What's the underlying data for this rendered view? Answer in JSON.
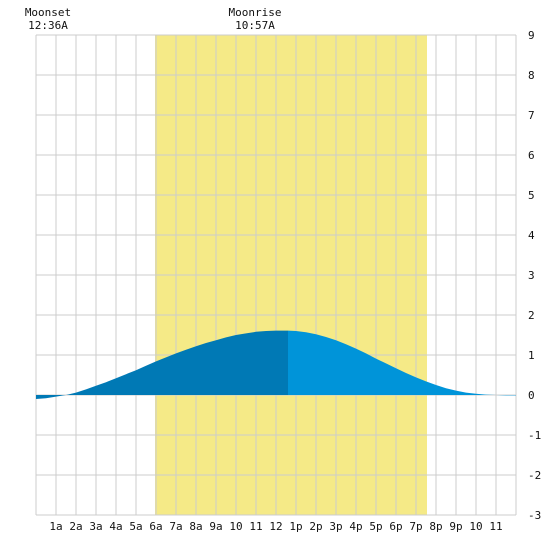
{
  "moon": {
    "moonset_label": "Moonset",
    "moonset_time": "12:36A",
    "moonset_hour": 0.6,
    "moonrise_label": "Moonrise",
    "moonrise_time": "10:57A",
    "moonrise_hour": 10.95
  },
  "chart_data": {
    "type": "area",
    "x_tick_labels": [
      "1a",
      "2a",
      "3a",
      "4a",
      "5a",
      "6a",
      "7a",
      "8a",
      "9a",
      "10",
      "11",
      "12",
      "1p",
      "2p",
      "3p",
      "4p",
      "5p",
      "6p",
      "7p",
      "8p",
      "9p",
      "10",
      "11"
    ],
    "y_tick_labels": [
      "-3",
      "-2",
      "-1",
      "0",
      "1",
      "2",
      "3",
      "4",
      "5",
      "6",
      "7",
      "8",
      "9"
    ],
    "xlim": [
      0,
      24
    ],
    "ylim": [
      -3,
      9
    ],
    "daylight": {
      "start_hour": 5.95,
      "end_hour": 19.55
    },
    "peak_hour": 12.6,
    "x": [
      0,
      0.5,
      1,
      1.5,
      2,
      2.5,
      3,
      3.5,
      4,
      4.5,
      5,
      5.5,
      6,
      6.5,
      7,
      7.5,
      8,
      8.5,
      9,
      9.5,
      10,
      10.5,
      11,
      11.5,
      12,
      12.5,
      13,
      13.5,
      14,
      14.5,
      15,
      15.5,
      16,
      16.5,
      17,
      17.5,
      18,
      18.5,
      19,
      19.5,
      20,
      20.5,
      21,
      21.5,
      22,
      22.5,
      23,
      23.5,
      24
    ],
    "values": [
      -0.1,
      -0.08,
      -0.04,
      0.0,
      0.06,
      0.14,
      0.23,
      0.32,
      0.42,
      0.52,
      0.62,
      0.73,
      0.84,
      0.94,
      1.04,
      1.13,
      1.22,
      1.3,
      1.37,
      1.44,
      1.5,
      1.54,
      1.58,
      1.6,
      1.61,
      1.61,
      1.6,
      1.57,
      1.52,
      1.45,
      1.37,
      1.27,
      1.16,
      1.04,
      0.91,
      0.79,
      0.67,
      0.55,
      0.44,
      0.34,
      0.25,
      0.17,
      0.11,
      0.06,
      0.03,
      0.01,
      0.0,
      -0.01,
      -0.01
    ],
    "colors": {
      "daylight": "#f5ea87",
      "tide_before_peak": "#0079b5",
      "tide_after_peak": "#0094d9",
      "grid": "#cccccc"
    },
    "grid": true
  }
}
